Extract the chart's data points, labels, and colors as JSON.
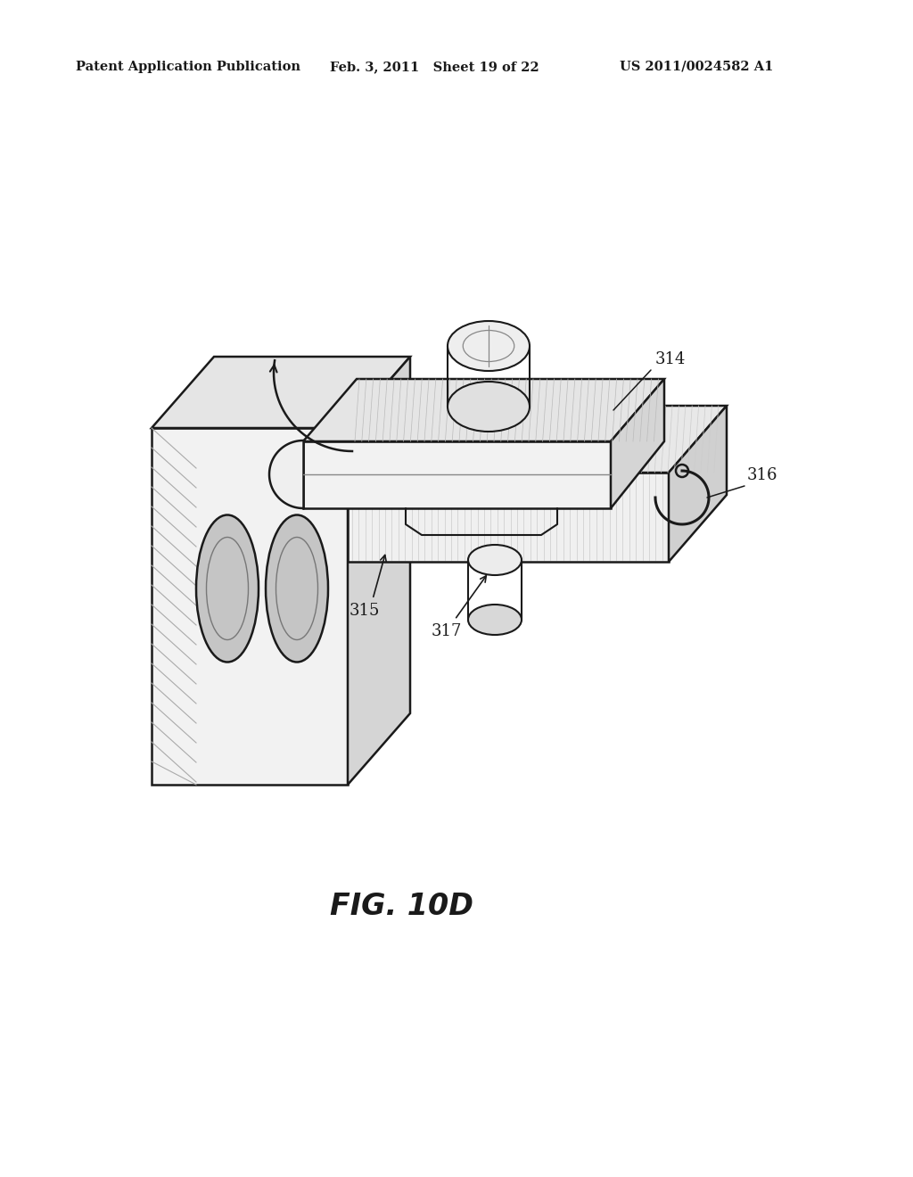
{
  "bg_color": "#ffffff",
  "line_color": "#1a1a1a",
  "header_left": "Patent Application Publication",
  "header_mid": "Feb. 3, 2011   Sheet 19 of 22",
  "header_right": "US 2011/0024582 A1",
  "fig_caption": "FIG. 10D",
  "fill_light": "#f5f5f5",
  "fill_mid": "#e8e8e8",
  "fill_dark": "#d8d8d8",
  "fill_darker": "#c8c8c8",
  "hatch_color": "#aaaaaa"
}
